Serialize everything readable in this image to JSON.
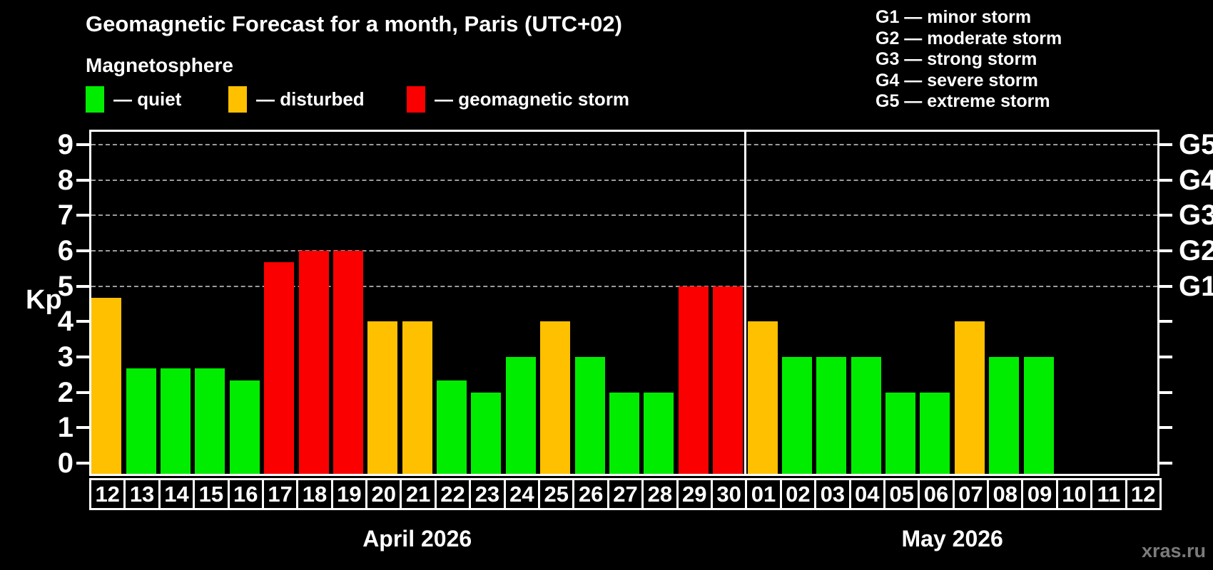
{
  "header": {
    "title": "Geomagnetic Forecast for a month, Paris (UTC+02)",
    "subtitle": "Magnetosphere"
  },
  "legend": {
    "items": [
      {
        "name": "quiet",
        "label": "— quiet",
        "color": "#00ED00"
      },
      {
        "name": "disturbed",
        "label": "— disturbed",
        "color": "#FFC000"
      },
      {
        "name": "storm",
        "label": "— geomagnetic storm",
        "color": "#FA0000"
      }
    ]
  },
  "g_legend": {
    "items": [
      "G1 — minor storm",
      "G2 — moderate storm",
      "G3 — strong storm",
      "G4 — severe storm",
      "G5 — extreme storm"
    ]
  },
  "watermark": "xras.ru",
  "chart_data": {
    "type": "bar",
    "title": "Geomagnetic Forecast for a month, Paris (UTC+02)",
    "ylabel": "Kp",
    "y_axis": {
      "min": 0,
      "max": 9,
      "ticks": [
        0,
        1,
        2,
        3,
        4,
        5,
        6,
        7,
        8,
        9
      ]
    },
    "right_axis_labels": [
      {
        "value": 5,
        "label": "G1"
      },
      {
        "value": 6,
        "label": "G2"
      },
      {
        "value": 7,
        "label": "G3"
      },
      {
        "value": 8,
        "label": "G4"
      },
      {
        "value": 9,
        "label": "G5"
      }
    ],
    "grid_levels": [
      5,
      6,
      7,
      8,
      9
    ],
    "status_colors": {
      "quiet": "#00ED00",
      "disturbed": "#FFC000",
      "storm": "#FA0000"
    },
    "months": [
      {
        "label": "April 2026",
        "days": [
          {
            "day": "12",
            "kp": 4.67,
            "status": "disturbed"
          },
          {
            "day": "13",
            "kp": 2.67,
            "status": "quiet"
          },
          {
            "day": "14",
            "kp": 2.67,
            "status": "quiet"
          },
          {
            "day": "15",
            "kp": 2.67,
            "status": "quiet"
          },
          {
            "day": "16",
            "kp": 2.33,
            "status": "quiet"
          },
          {
            "day": "17",
            "kp": 5.67,
            "status": "storm"
          },
          {
            "day": "18",
            "kp": 6,
            "status": "storm"
          },
          {
            "day": "19",
            "kp": 6,
            "status": "storm"
          },
          {
            "day": "20",
            "kp": 4,
            "status": "disturbed"
          },
          {
            "day": "21",
            "kp": 4,
            "status": "disturbed"
          },
          {
            "day": "22",
            "kp": 2.33,
            "status": "quiet"
          },
          {
            "day": "23",
            "kp": 2,
            "status": "quiet"
          },
          {
            "day": "24",
            "kp": 3,
            "status": "quiet"
          },
          {
            "day": "25",
            "kp": 4,
            "status": "disturbed"
          },
          {
            "day": "26",
            "kp": 3,
            "status": "quiet"
          },
          {
            "day": "27",
            "kp": 2,
            "status": "quiet"
          },
          {
            "day": "28",
            "kp": 2,
            "status": "quiet"
          },
          {
            "day": "29",
            "kp": 5,
            "status": "storm"
          },
          {
            "day": "30",
            "kp": 5,
            "status": "storm"
          }
        ]
      },
      {
        "label": "May 2026",
        "days": [
          {
            "day": "01",
            "kp": 4,
            "status": "disturbed"
          },
          {
            "day": "02",
            "kp": 3,
            "status": "quiet"
          },
          {
            "day": "03",
            "kp": 3,
            "status": "quiet"
          },
          {
            "day": "04",
            "kp": 3,
            "status": "quiet"
          },
          {
            "day": "05",
            "kp": 2,
            "status": "quiet"
          },
          {
            "day": "06",
            "kp": 2,
            "status": "quiet"
          },
          {
            "day": "07",
            "kp": 4,
            "status": "disturbed"
          },
          {
            "day": "08",
            "kp": 3,
            "status": "quiet"
          },
          {
            "day": "09",
            "kp": 3,
            "status": "quiet"
          },
          {
            "day": "10",
            "kp": null,
            "status": null
          },
          {
            "day": "11",
            "kp": null,
            "status": null
          },
          {
            "day": "12",
            "kp": null,
            "status": null
          }
        ]
      }
    ]
  }
}
